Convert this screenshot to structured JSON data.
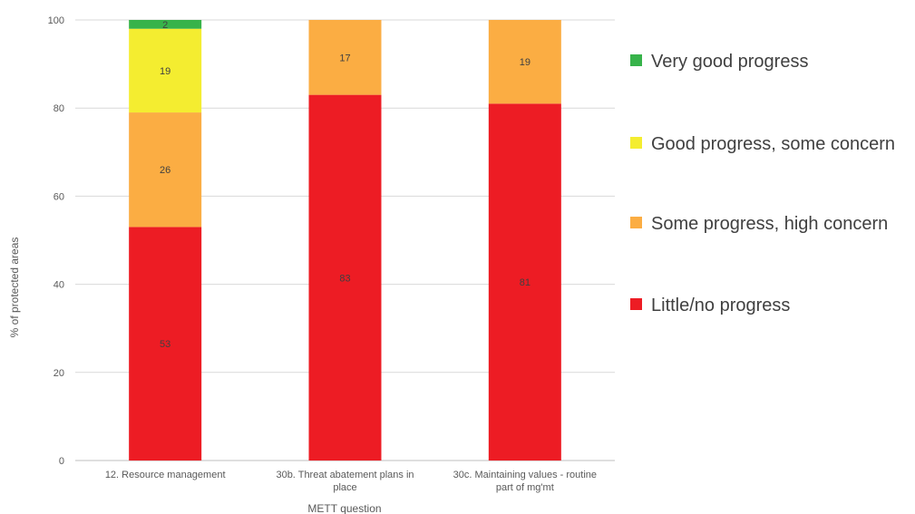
{
  "chart_data": {
    "type": "bar",
    "stacked": true,
    "xlabel": "METT question",
    "ylabel": "% of protected areas",
    "ylim": [
      0,
      100
    ],
    "yticks": [
      0,
      20,
      40,
      60,
      80,
      100
    ],
    "grid": true,
    "legend_position": "right",
    "categories": [
      [
        "12. Resource management"
      ],
      [
        "30b. Threat abatement plans in",
        "place"
      ],
      [
        "30c. Maintaining values - routine",
        "part of mg'mt"
      ]
    ],
    "series": [
      {
        "name": "Little/no progress",
        "color": "#ed1c24",
        "values": [
          53,
          83,
          81
        ]
      },
      {
        "name": "Some progress, high concern",
        "color": "#fbad43",
        "values": [
          26,
          17,
          19
        ]
      },
      {
        "name": "Good progress, some concern",
        "color": "#f4ed30",
        "values": [
          19,
          0,
          0
        ]
      },
      {
        "name": "Very good progress",
        "color": "#37b34a",
        "values": [
          2,
          0,
          0
        ]
      }
    ],
    "legend_order": [
      "Very good progress",
      "Good progress, some concern",
      "Some progress, high concern",
      "Little/no progress"
    ]
  }
}
